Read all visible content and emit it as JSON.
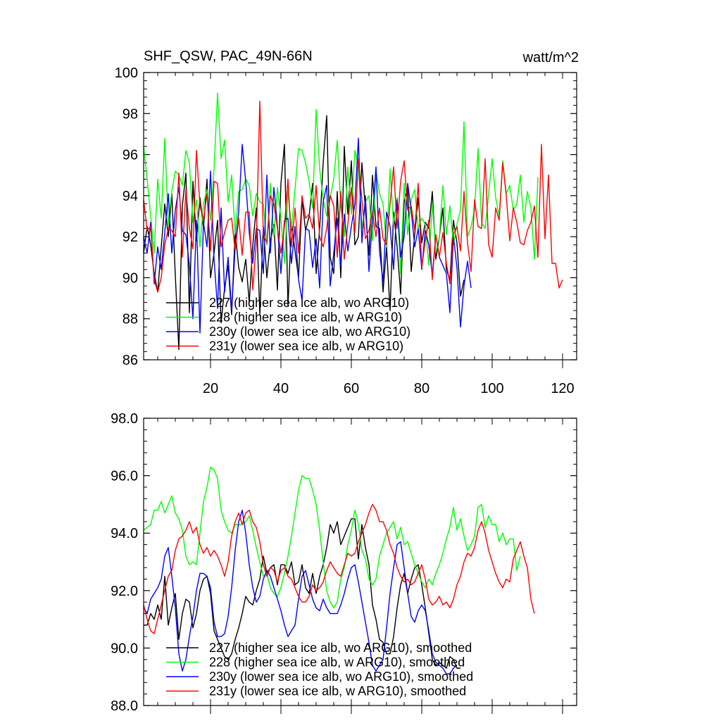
{
  "chart_data": [
    {
      "type": "line",
      "title": "SHF_QSW, PAC_49N-66N",
      "units": "watt/m^2",
      "xlim": [
        1,
        124
      ],
      "ylim": [
        86,
        100
      ],
      "xticks": [
        "20",
        "40",
        "60",
        "80",
        "100",
        "120"
      ],
      "yticks": [
        "86",
        "88",
        "90",
        "92",
        "94",
        "96",
        "98",
        "100"
      ],
      "series": [
        {
          "name": "227 (higher sea ice alb, wo ARG10)",
          "color": "#000000",
          "values": [
            91.2,
            92.5,
            91.6,
            90.2,
            89.3,
            91.5,
            93.6,
            92.0,
            94.1,
            90.1,
            86.5,
            93.5,
            95.1,
            88.3,
            94.7,
            91.8,
            93.9,
            92.4,
            94.8,
            90.0,
            91.2,
            92.8,
            87.8,
            89.5,
            90.6,
            88.2,
            92.3,
            90.5,
            89.8,
            90.9,
            88.8,
            91.6,
            93.4,
            88.2,
            92.5,
            90.0,
            91.8,
            92.6,
            89.4,
            94.6,
            96.5,
            88.6,
            92.7,
            91.3,
            90.0,
            93.8,
            92.3,
            93.0,
            94.6,
            90.2,
            92.4,
            95.6,
            97.9,
            91.0,
            90.2,
            94.2,
            90.0,
            96.4,
            93.1,
            95.7,
            91.6,
            92.0,
            95.6,
            93.3,
            91.1,
            95.0,
            92.5,
            92.4,
            89.3,
            91.5,
            88.4,
            93.2,
            91.5,
            89.2,
            93.7,
            94.4,
            90.3,
            92.1,
            93.9,
            91.7,
            92.7,
            92.4,
            94.2,
            90.9,
            92.0,
            93.4,
            90.4,
            89.9,
            92.8,
            91.7,
            89.1,
            89.9
          ]
        },
        {
          "name": "228 (higher sea ice alb, w ARG10)",
          "color": "#00ff00",
          "values": [
            96.4,
            94.8,
            93.0,
            91.2,
            94.8,
            92.9,
            96.8,
            92.6,
            94.2,
            95.2,
            95.0,
            94.5,
            96.2,
            95.6,
            92.7,
            93.8,
            91.5,
            93.6,
            94.3,
            92.8,
            95.3,
            99.0,
            95.8,
            96.7,
            93.7,
            95.0,
            92.1,
            94.2,
            94.3,
            94.8,
            94.5,
            93.0,
            94.1,
            93.7,
            93.6,
            91.6,
            94.6,
            92.0,
            94.4,
            92.9,
            90.7,
            94.2,
            92.4,
            94.3,
            96.3,
            96.2,
            95.6,
            94.7,
            93.4,
            98.2,
            95.3,
            93.8,
            93.0,
            93.9,
            94.8,
            96.7,
            93.5,
            92.0,
            95.4,
            93.1,
            96.2,
            95.5,
            92.4,
            93.7,
            94.0,
            91.8,
            95.2,
            94.1,
            93.6,
            91.5,
            95.3,
            92.6,
            93.9,
            90.2,
            94.6,
            92.1,
            93.8,
            94.3,
            92.4,
            92.9,
            92.6,
            90.6,
            93.6,
            91.2,
            92.0,
            94.5,
            92.1,
            93.5,
            91.6,
            92.6,
            93.3,
            97.6,
            92.0,
            92.5,
            93.3,
            96.3,
            92.7,
            92.4,
            94.1,
            95.8,
            93.9,
            93.0,
            95.7,
            94.1,
            94.5,
            93.3,
            93.6,
            95.0,
            92.7,
            94.2,
            93.4,
            90.9,
            94.9
          ]
        },
        {
          "name": "230y (lower sea ice alb, wo ARG10)",
          "color": "#0000ff",
          "values": [
            92.0,
            91.2,
            92.7,
            89.7,
            91.5,
            90.4,
            92.2,
            94.1,
            91.2,
            93.3,
            94.4,
            92.3,
            92.1,
            90.6,
            88.0,
            92.8,
            87.3,
            92.7,
            91.5,
            95.2,
            90.9,
            88.5,
            93.4,
            89.3,
            91.0,
            88.4,
            91.5,
            93.2,
            96.5,
            94.7,
            92.2,
            90.7,
            92.4,
            92.3,
            90.2,
            95.0,
            91.2,
            94.4,
            92.5,
            90.2,
            92.8,
            92.9,
            90.7,
            92.5,
            89.9,
            88.9,
            92.4,
            92.3,
            90.5,
            91.9,
            89.5,
            93.7,
            94.5,
            89.6,
            91.2,
            92.9,
            90.6,
            93.1,
            91.3,
            92.5,
            93.6,
            96.8,
            91.7,
            94.0,
            90.3,
            92.9,
            95.4,
            91.3,
            89.8,
            93.2,
            92.5,
            90.4,
            93.8,
            91.0,
            92.0,
            94.6,
            93.3,
            91.5,
            92.4,
            90.4,
            92.3,
            91.6,
            90.1,
            92.1,
            91.0,
            90.6,
            90.2,
            88.3,
            92.0,
            90.5,
            87.6,
            89.6,
            90.8,
            89.5
          ]
        },
        {
          "name": "231y (lower sea ice alb, w ARG10)",
          "color": "#ff0000",
          "values": [
            93.8,
            92.3,
            92.5,
            89.9,
            89.3,
            90.0,
            91.6,
            92.4,
            92.3,
            92.0,
            95.1,
            91.0,
            94.3,
            92.4,
            91.4,
            96.2,
            93.5,
            92.8,
            94.1,
            91.3,
            94.7,
            94.6,
            91.5,
            92.2,
            92.8,
            92.9,
            91.3,
            92.9,
            91.1,
            93.2,
            93.2,
            89.4,
            91.7,
            98.6,
            92.1,
            91.7,
            94.0,
            93.6,
            92.4,
            91.2,
            92.5,
            94.8,
            91.5,
            93.4,
            91.2,
            94.0,
            92.9,
            93.1,
            92.4,
            94.5,
            92.0,
            91.5,
            92.4,
            94.0,
            93.5,
            91.0,
            94.2,
            90.9,
            92.6,
            94.4,
            92.2,
            95.8,
            93.8,
            91.9,
            92.3,
            93.2,
            92.0,
            93.4,
            91.9,
            91.6,
            93.6,
            95.4,
            92.4,
            94.7,
            95.7,
            93.3,
            93.5,
            92.3,
            94.6,
            90.5,
            91.8,
            92.8,
            89.9,
            92.1,
            91.0,
            92.2,
            90.7,
            89.7,
            92.1,
            92.5,
            91.3,
            94.2,
            91.7,
            90.3,
            93.8,
            92.5,
            92.4,
            95.8,
            91.6,
            91.0,
            93.4,
            92.8,
            95.6,
            94.0,
            91.8,
            93.4,
            92.7,
            91.7,
            91.6,
            92.3,
            92.7,
            93.5,
            91.0,
            96.5,
            91.9,
            95.0,
            90.7,
            90.7,
            89.5,
            89.9
          ]
        }
      ],
      "legend": [
        "227 (higher sea ice alb, wo ARG10)",
        "228 (higher sea ice alb, w ARG10)",
        "230y (lower sea ice alb, wo ARG10)",
        "231y (lower sea ice alb, w ARG10)"
      ],
      "legend_position": "bottom-left"
    },
    {
      "type": "line",
      "title": "",
      "xlim": [
        1,
        124
      ],
      "ylim": [
        88,
        98
      ],
      "yticks": [
        "88.0",
        "90.0",
        "92.0",
        "94.0",
        "96.0",
        "98.0"
      ],
      "series": [
        {
          "name": "227 (higher sea ice alb, wo ARG10), smoothed",
          "color": "#000000",
          "values": [
            90.8,
            90.8,
            91.2,
            91.0,
            91.5,
            91.0,
            92.5,
            90.8,
            91.4,
            91.9,
            90.3,
            91.2,
            91.7,
            91.6,
            90.7,
            91.2,
            92.0,
            92.4,
            92.5,
            91.9,
            90.6,
            90.3,
            90.0,
            89.7,
            89.6,
            89.8,
            90.3,
            90.7,
            91.2,
            91.8,
            91.6,
            91.5,
            92.0,
            92.4,
            93.2,
            92.6,
            92.8,
            92.9,
            92.2,
            92.9,
            92.9,
            92.6,
            93.0,
            92.2,
            92.3,
            92.9,
            92.1,
            91.9,
            92.6,
            91.9,
            92.5,
            92.9,
            93.5,
            94.3,
            94.0,
            94.4,
            93.6,
            93.9,
            94.2,
            94.5,
            94.5,
            93.1,
            94.3,
            93.5,
            92.9,
            91.5,
            91.0,
            90.3,
            90.2,
            89.8,
            89.8,
            90.4,
            91.4,
            92.2,
            92.6,
            91.9,
            92.4,
            92.8,
            92.9,
            92.2,
            91.4,
            90.5,
            89.6,
            89.4,
            89.5,
            89.4,
            89.3,
            89.7,
            89.6,
            89.3,
            89.3
          ]
        },
        {
          "name": "228 (higher sea ice alb, w ARG10), smoothed",
          "color": "#00ff00",
          "values": [
            94.1,
            94.2,
            94.3,
            94.8,
            94.8,
            95.1,
            94.7,
            95.0,
            95.3,
            94.7,
            94.5,
            94.1,
            93.2,
            92.9,
            93.0,
            92.9,
            94.0,
            95.1,
            95.6,
            96.3,
            96.2,
            95.9,
            94.8,
            94.4,
            94.1,
            94.0,
            94.3,
            94.3,
            94.3,
            94.4,
            94.6,
            94.1,
            93.5,
            93.0,
            92.5,
            92.6,
            92.1,
            91.9,
            91.8,
            92.1,
            92.6,
            93.2,
            93.9,
            94.7,
            95.5,
            96.0,
            95.9,
            95.9,
            95.5,
            95.0,
            94.1,
            93.0,
            92.0,
            91.6,
            91.4,
            91.6,
            92.4,
            92.8,
            93.6,
            94.1,
            94.8,
            94.3,
            93.4,
            93.1,
            92.4,
            92.2,
            92.4,
            93.2,
            93.6,
            94.0,
            94.2,
            94.4,
            93.8,
            94.2,
            93.6,
            93.7,
            93.3,
            92.9,
            92.6,
            92.3,
            92.1,
            92.4,
            92.2,
            92.6,
            92.9,
            93.3,
            93.8,
            94.2,
            94.9,
            94.1,
            94.5,
            93.9,
            93.4,
            93.6,
            93.9,
            94.9,
            95.0,
            94.2,
            94.6,
            94.3,
            94.3,
            93.7,
            94.0,
            93.6,
            93.8,
            93.8,
            92.7,
            93.2
          ]
        },
        {
          "name": "230y (lower sea ice alb, wo ARG10), smoothed",
          "color": "#0000ff",
          "values": [
            91.4,
            91.2,
            91.7,
            91.9,
            92.1,
            92.4,
            93.2,
            93.5,
            92.5,
            91.4,
            89.8,
            89.2,
            89.6,
            90.4,
            91.1,
            92.0,
            92.6,
            92.6,
            92.5,
            92.1,
            90.9,
            90.4,
            90.4,
            90.5,
            91.1,
            92.1,
            93.4,
            94.4,
            94.8,
            94.0,
            92.9,
            92.1,
            91.6,
            91.8,
            92.4,
            92.7,
            92.5,
            92.1,
            91.7,
            91.3,
            90.8,
            90.4,
            90.6,
            90.8,
            91.7,
            92.5,
            92.7,
            92.2,
            91.7,
            91.4,
            91.3,
            91.7,
            91.4,
            91.2,
            91.2,
            91.2,
            91.5,
            91.9,
            92.4,
            92.8,
            92.9,
            92.3,
            91.6,
            90.9,
            90.2,
            89.4,
            89.2,
            89.4,
            89.6,
            90.7,
            91.9,
            92.8,
            93.6,
            93.7,
            92.8,
            91.9,
            91.1,
            90.9,
            91.3,
            91.5,
            91.3,
            90.6,
            89.8,
            89.5,
            89.4,
            89.3,
            89.1,
            89.1,
            89.3,
            89.4
          ]
        },
        {
          "name": "231y (lower sea ice alb, w ARG10), smoothed",
          "color": "#ff0000",
          "values": [
            91.5,
            91.0,
            90.6,
            90.5,
            91.0,
            91.5,
            92.0,
            92.5,
            92.7,
            93.4,
            93.8,
            93.9,
            94.1,
            94.4,
            94.0,
            94.2,
            93.6,
            93.3,
            93.5,
            93.2,
            93.4,
            93.2,
            92.9,
            92.5,
            93.0,
            93.9,
            94.4,
            94.7,
            94.3,
            94.7,
            94.8,
            94.4,
            94.2,
            93.7,
            92.9,
            92.5,
            92.8,
            92.7,
            92.3,
            92.7,
            92.8,
            92.5,
            92.4,
            92.1,
            91.8,
            91.6,
            91.6,
            91.8,
            92.2,
            92.0,
            92.1,
            92.3,
            92.7,
            93.0,
            92.8,
            92.6,
            92.5,
            92.9,
            93.3,
            93.2,
            93.3,
            93.7,
            94.0,
            94.3,
            94.7,
            95.0,
            94.8,
            94.4,
            94.4,
            94.1,
            93.6,
            93.3,
            92.8,
            92.5,
            92.3,
            92.4,
            92.2,
            92.3,
            92.6,
            92.9,
            92.4,
            91.7,
            91.5,
            91.6,
            91.8,
            91.5,
            91.6,
            91.4,
            91.7,
            92.2,
            92.5,
            93.0,
            93.3,
            93.2,
            93.5,
            94.1,
            94.4,
            94.0,
            93.4,
            93.0,
            92.6,
            92.3,
            92.1,
            92.4,
            92.3,
            93.1,
            93.4,
            93.7,
            93.2,
            92.8,
            91.7,
            91.2
          ]
        }
      ],
      "legend": [
        "227 (higher sea ice alb, wo ARG10), smoothed",
        "228 (higher sea ice alb, w ARG10), smoothed",
        "230y (lower sea ice alb, wo ARG10), smoothed",
        "231y (lower sea ice alb, w ARG10), smoothed"
      ],
      "legend_position": "bottom-left"
    }
  ]
}
